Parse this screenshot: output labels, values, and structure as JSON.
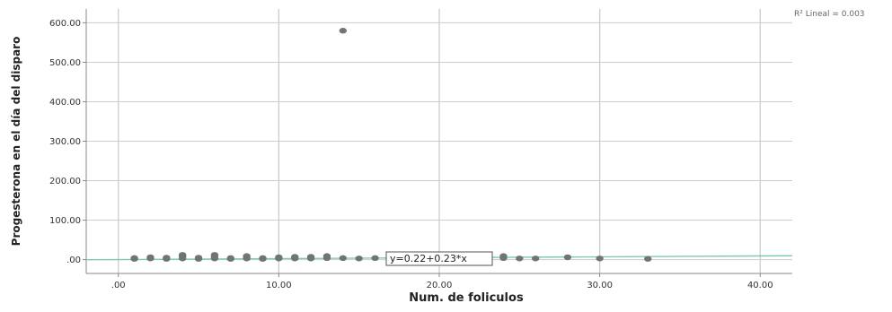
{
  "chart_data": {
    "type": "scatter",
    "title": "",
    "xlabel": "Num. de foliculos",
    "ylabel": "Progesterona en el día del disparo",
    "xlim": [
      -2,
      42
    ],
    "ylim": [
      -35,
      635
    ],
    "x_ticks": [
      0,
      10,
      20,
      30,
      40
    ],
    "x_tick_labels": [
      ".00",
      "10.00",
      "20.00",
      "30.00",
      "40.00"
    ],
    "y_ticks": [
      0,
      100,
      200,
      300,
      400,
      500,
      600
    ],
    "y_tick_labels": [
      ".00",
      "100.00",
      "200.00",
      "300.00",
      "400.00",
      "500.00",
      "600.00"
    ],
    "grid": "vertical",
    "points": [
      {
        "x": 1,
        "y": 2
      },
      {
        "x": 1,
        "y": 4
      },
      {
        "x": 2,
        "y": 3
      },
      {
        "x": 2,
        "y": 6
      },
      {
        "x": 3,
        "y": 2
      },
      {
        "x": 3,
        "y": 5
      },
      {
        "x": 4,
        "y": 3
      },
      {
        "x": 4,
        "y": 8
      },
      {
        "x": 4,
        "y": 12
      },
      {
        "x": 5,
        "y": 2
      },
      {
        "x": 5,
        "y": 5
      },
      {
        "x": 6,
        "y": 3
      },
      {
        "x": 6,
        "y": 7
      },
      {
        "x": 6,
        "y": 12
      },
      {
        "x": 7,
        "y": 2
      },
      {
        "x": 7,
        "y": 4
      },
      {
        "x": 8,
        "y": 3
      },
      {
        "x": 8,
        "y": 6
      },
      {
        "x": 8,
        "y": 9
      },
      {
        "x": 9,
        "y": 2
      },
      {
        "x": 9,
        "y": 4
      },
      {
        "x": 10,
        "y": 3
      },
      {
        "x": 10,
        "y": 6
      },
      {
        "x": 11,
        "y": 3
      },
      {
        "x": 11,
        "y": 7
      },
      {
        "x": 12,
        "y": 3
      },
      {
        "x": 12,
        "y": 7
      },
      {
        "x": 13,
        "y": 4
      },
      {
        "x": 13,
        "y": 9
      },
      {
        "x": 14,
        "y": 580
      },
      {
        "x": 14,
        "y": 4
      },
      {
        "x": 15,
        "y": 3
      },
      {
        "x": 16,
        "y": 4
      },
      {
        "x": 17,
        "y": 5
      },
      {
        "x": 24,
        "y": 4
      },
      {
        "x": 24,
        "y": 9
      },
      {
        "x": 25,
        "y": 3
      },
      {
        "x": 26,
        "y": 3
      },
      {
        "x": 28,
        "y": 6
      },
      {
        "x": 30,
        "y": 3
      },
      {
        "x": 33,
        "y": 2
      }
    ],
    "fit_line": {
      "intercept": 0.22,
      "slope": 0.23,
      "color": "#7fc8b8"
    },
    "equation_label": "y=0.22+0.23*x",
    "r2_label": "R² Lineal = 0.003",
    "point_color": "#6e7675",
    "grid_color": "#cccccc",
    "axis_color": "#888888"
  }
}
